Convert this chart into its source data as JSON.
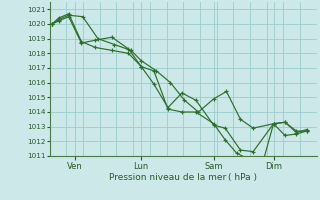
{
  "xlabel": "Pression niveau de la mer ( hPa )",
  "background_color": "#cce8e8",
  "grid_color": "#99cccc",
  "line_color": "#2d6e2d",
  "ylim": [
    1011,
    1021.5
  ],
  "yticks": [
    1011,
    1012,
    1013,
    1014,
    1015,
    1016,
    1017,
    1018,
    1019,
    1020,
    1021
  ],
  "xtick_labels": [
    "Ven",
    "Lun",
    "Sam",
    "Dim"
  ],
  "xtick_positions": [
    0.09,
    0.35,
    0.635,
    0.87
  ],
  "series": [
    {
      "x": [
        0.0,
        0.025,
        0.065,
        0.12,
        0.18,
        0.245,
        0.31,
        0.35,
        0.41,
        0.465,
        0.52,
        0.575,
        0.635,
        0.685,
        0.74,
        0.79,
        0.87,
        0.915,
        0.96,
        1.0
      ],
      "y": [
        1020.0,
        1020.3,
        1020.6,
        1020.5,
        1019.0,
        1018.6,
        1018.2,
        1017.5,
        1016.8,
        1016.0,
        1014.8,
        1014.0,
        1014.9,
        1015.4,
        1013.5,
        1012.9,
        1013.2,
        1013.3,
        1012.7,
        1012.7
      ]
    },
    {
      "x": [
        0.0,
        0.025,
        0.065,
        0.115,
        0.17,
        0.235,
        0.3,
        0.35,
        0.4,
        0.455,
        0.51,
        0.565,
        0.635,
        0.68,
        0.725,
        0.77,
        0.83,
        0.87,
        0.915,
        0.96,
        1.0
      ],
      "y": [
        1020.0,
        1020.4,
        1020.7,
        1018.8,
        1018.4,
        1018.2,
        1018.0,
        1017.1,
        1016.8,
        1014.2,
        1014.0,
        1014.0,
        1013.2,
        1012.1,
        1011.2,
        1010.8,
        1010.7,
        1013.2,
        1012.4,
        1012.5,
        1012.7
      ]
    },
    {
      "x": [
        0.0,
        0.025,
        0.065,
        0.115,
        0.17,
        0.235,
        0.3,
        0.35,
        0.4,
        0.455,
        0.51,
        0.565,
        0.635,
        0.68,
        0.74,
        0.79,
        0.87,
        0.915,
        0.96,
        1.0
      ],
      "y": [
        1020.0,
        1020.2,
        1020.5,
        1018.7,
        1018.9,
        1019.1,
        1018.3,
        1017.1,
        1015.9,
        1014.3,
        1015.3,
        1014.8,
        1013.1,
        1012.9,
        1011.4,
        1011.3,
        1013.2,
        1013.3,
        1012.6,
        1012.8
      ]
    }
  ]
}
